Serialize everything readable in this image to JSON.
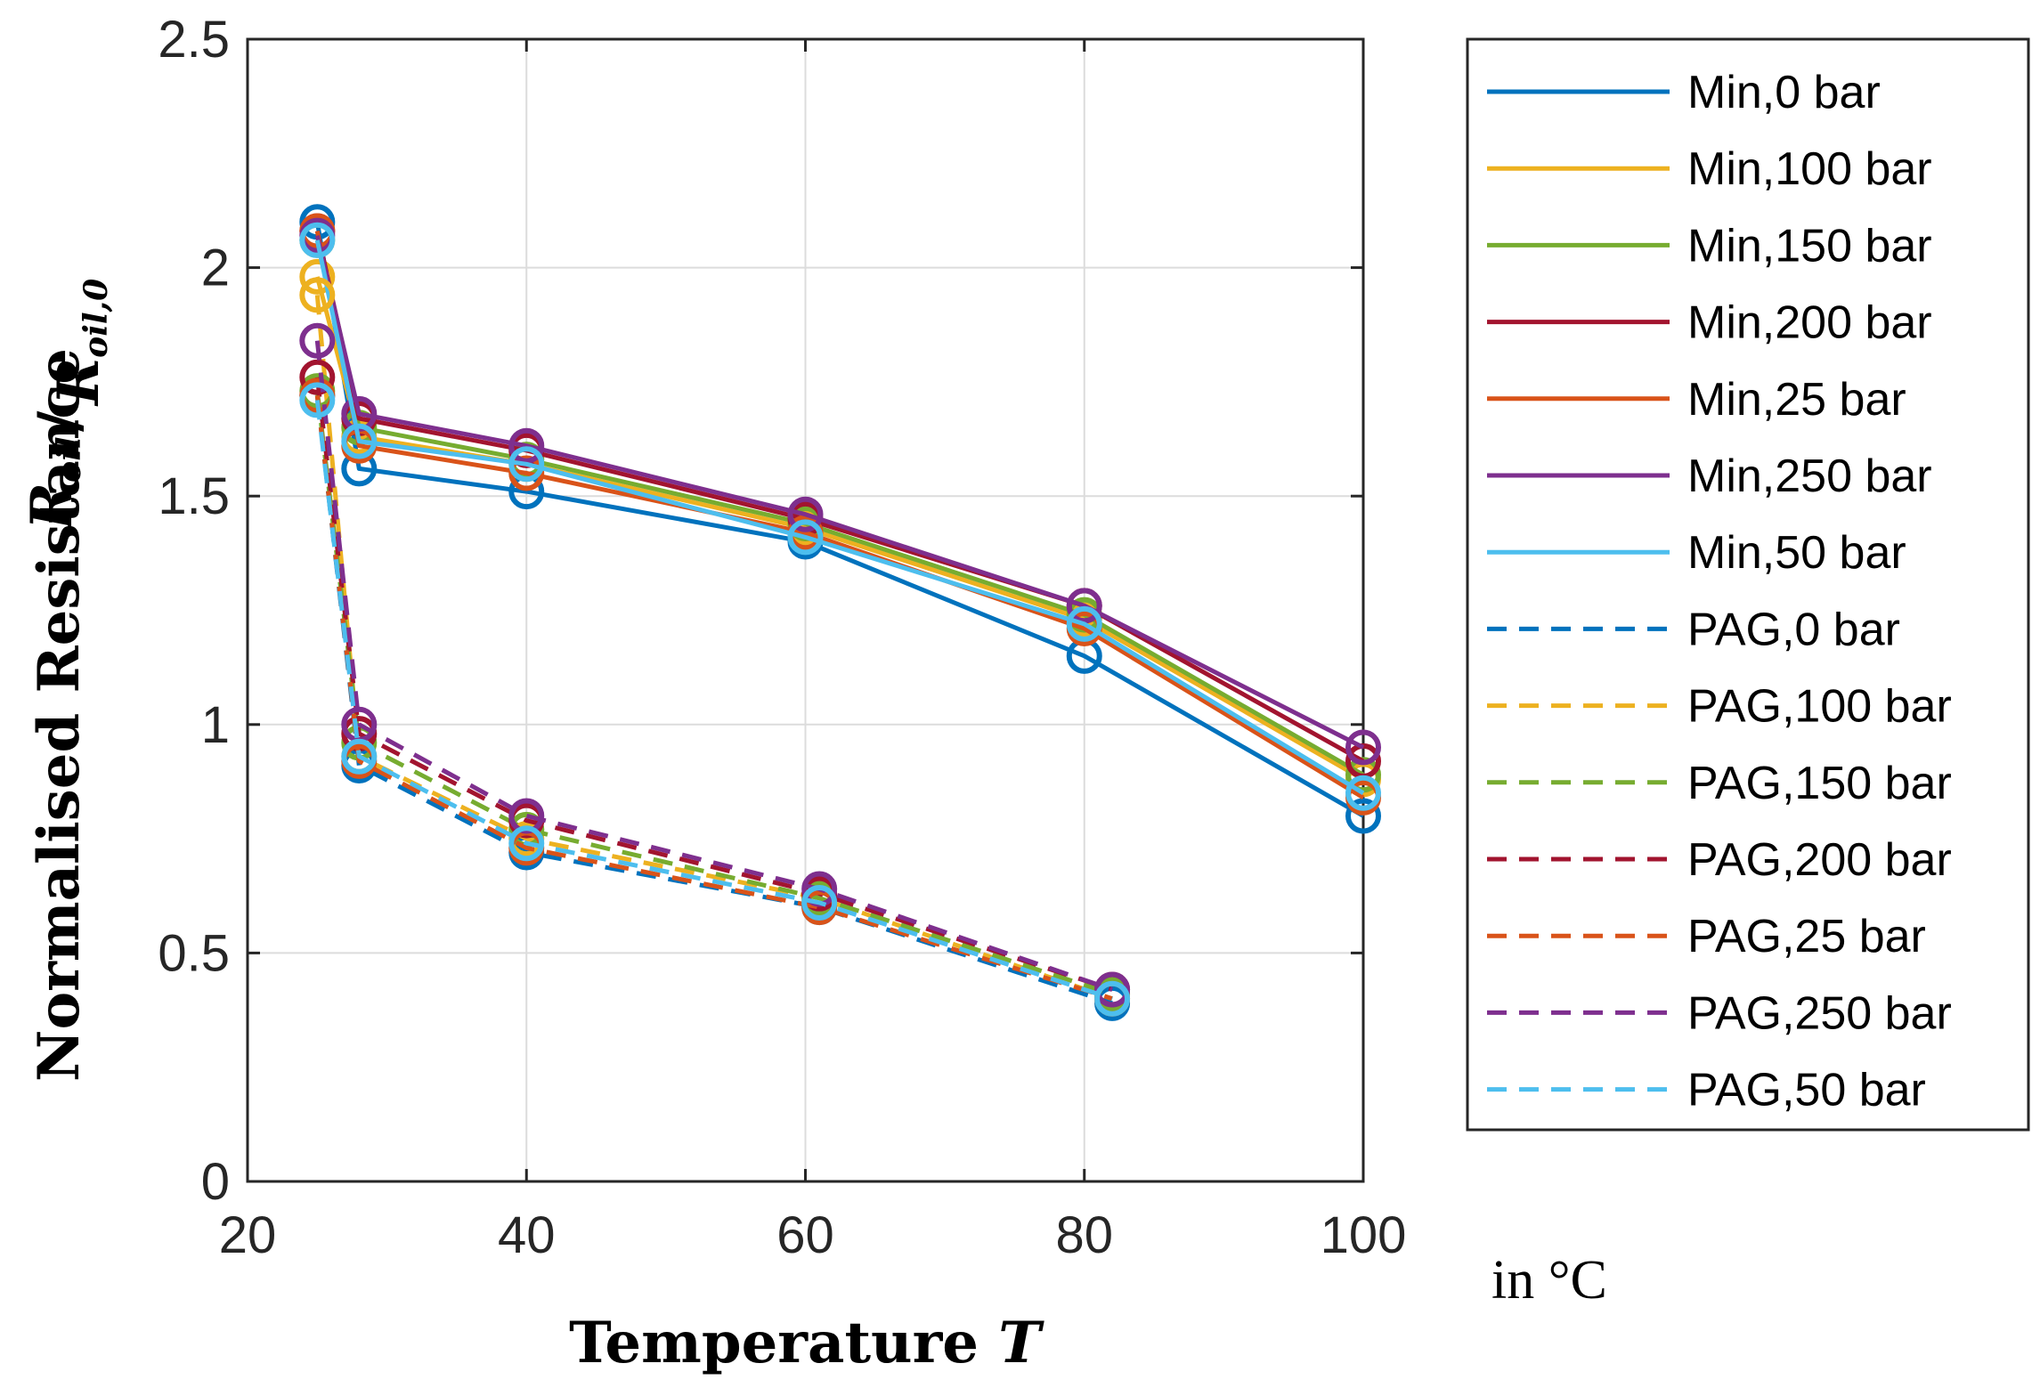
{
  "chart_data": {
    "type": "line",
    "xlabel": "Temperature",
    "xlabel_var": "T",
    "x_unit": "in °C",
    "ylabel": "Normalised Resistance",
    "ylabel_num": "R",
    "ylabel_num_sub": "oil",
    "ylabel_den": "R",
    "ylabel_den_sub": "oil,0",
    "xlim": [
      20,
      100
    ],
    "ylim": [
      0,
      2.5
    ],
    "xticks": [
      20,
      40,
      60,
      80,
      100
    ],
    "yticks": [
      0,
      0.5,
      1,
      1.5,
      2,
      2.5
    ],
    "xtick_labels": [
      "20",
      "40",
      "60",
      "80",
      "100"
    ],
    "ytick_labels": [
      "0",
      "0.5",
      "1",
      "1.5",
      "2",
      "2.5"
    ],
    "grid": true,
    "legend_position": "outside-right",
    "marker": "circle",
    "series": [
      {
        "name": "Min,0 bar",
        "color": "#0072BD",
        "dash": false,
        "x": [
          25,
          28,
          40,
          60,
          80,
          100
        ],
        "y": [
          2.1,
          1.56,
          1.51,
          1.4,
          1.15,
          0.8
        ]
      },
      {
        "name": "Min,100 bar",
        "color": "#EDB120",
        "dash": false,
        "x": [
          25,
          28,
          40,
          60,
          80,
          100
        ],
        "y": [
          1.98,
          1.63,
          1.57,
          1.43,
          1.23,
          0.88
        ]
      },
      {
        "name": "Min,150 bar",
        "color": "#77AC30",
        "dash": false,
        "x": [
          25,
          28,
          40,
          60,
          80,
          100
        ],
        "y": [
          2.06,
          1.65,
          1.58,
          1.44,
          1.24,
          0.89
        ]
      },
      {
        "name": "Min,200 bar",
        "color": "#A2142F",
        "dash": false,
        "x": [
          25,
          28,
          40,
          60,
          80,
          100
        ],
        "y": [
          2.08,
          1.67,
          1.6,
          1.45,
          1.26,
          0.92
        ]
      },
      {
        "name": "Min,25 bar",
        "color": "#D95319",
        "dash": false,
        "x": [
          25,
          28,
          40,
          60,
          80,
          100
        ],
        "y": [
          2.08,
          1.61,
          1.55,
          1.42,
          1.21,
          0.84
        ]
      },
      {
        "name": "Min,250 bar",
        "color": "#7E2F8E",
        "dash": false,
        "x": [
          25,
          28,
          40,
          60,
          80,
          100
        ],
        "y": [
          2.07,
          1.68,
          1.61,
          1.46,
          1.26,
          0.95
        ]
      },
      {
        "name": "Min,50 bar",
        "color": "#4DBEEE",
        "dash": false,
        "x": [
          25,
          28,
          40,
          60,
          80,
          100
        ],
        "y": [
          2.06,
          1.62,
          1.57,
          1.41,
          1.22,
          0.85
        ]
      },
      {
        "name": "PAG,0 bar",
        "color": "#0072BD",
        "dash": true,
        "x": [
          25,
          28,
          40,
          61,
          82
        ],
        "y": [
          1.72,
          0.91,
          0.72,
          0.6,
          0.39
        ]
      },
      {
        "name": "PAG,100 bar",
        "color": "#EDB120",
        "dash": true,
        "x": [
          25,
          28,
          40,
          61,
          82
        ],
        "y": [
          1.94,
          0.93,
          0.75,
          0.62,
          0.4
        ]
      },
      {
        "name": "PAG,150 bar",
        "color": "#77AC30",
        "dash": true,
        "x": [
          25,
          28,
          40,
          61,
          82
        ],
        "y": [
          1.73,
          0.96,
          0.77,
          0.62,
          0.41
        ]
      },
      {
        "name": "PAG,200 bar",
        "color": "#A2142F",
        "dash": true,
        "x": [
          25,
          28,
          40,
          61,
          82
        ],
        "y": [
          1.76,
          0.98,
          0.79,
          0.63,
          0.42
        ]
      },
      {
        "name": "PAG,25 bar",
        "color": "#D95319",
        "dash": true,
        "x": [
          25,
          28,
          40,
          61,
          82
        ],
        "y": [
          1.72,
          0.92,
          0.73,
          0.6,
          0.4
        ]
      },
      {
        "name": "PAG,250 bar",
        "color": "#7E2F8E",
        "dash": true,
        "x": [
          25,
          28,
          40,
          61,
          82
        ],
        "y": [
          1.84,
          1.0,
          0.8,
          0.64,
          0.42
        ]
      },
      {
        "name": "PAG,50 bar",
        "color": "#4DBEEE",
        "dash": true,
        "x": [
          25,
          28,
          40,
          61,
          82
        ],
        "y": [
          1.71,
          0.93,
          0.74,
          0.61,
          0.4
        ]
      }
    ]
  }
}
